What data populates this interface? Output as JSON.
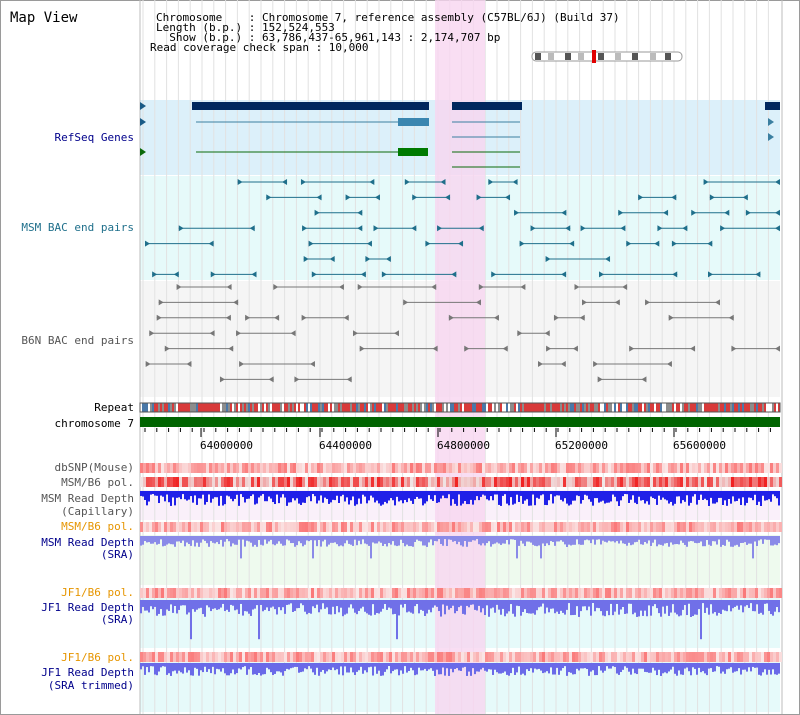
{
  "title": "Map View",
  "header": {
    "line1": "Chromosome    : Chromosome 7, reference assembly (C57BL/6J) (Build 37)",
    "line2": "Length (b.p.) : 152,524,553",
    "line3": "  Show (b.p.) : 63,786,437-65,961,143 : 2,174,707 bp",
    "line4": "Read coverage check span : 10,000"
  },
  "tracks": {
    "refseq": "RefSeq Genes",
    "msm_bac": "MSM BAC end pairs",
    "b6n_bac": "B6N BAC end pairs",
    "repeat": "Repeat",
    "chromosome": "chromosome 7",
    "dbsnp": "dbSNP(Mouse)",
    "msm_b6_pol": "MSM/B6 pol.",
    "msm_depth_cap_1": "MSM Read Depth",
    "msm_depth_cap_2": "(Capillary)",
    "msm_b6_pol_2": "MSM/B6 pol.",
    "msm_depth_sra_1": "MSM Read Depth",
    "msm_depth_sra_2": "(SRA)",
    "jf1_b6_pol": "JF1/B6 pol.",
    "jf1_depth_1": "JF1 Read Depth",
    "jf1_depth_2": "(SRA)",
    "jf1_b6_pol_2": "JF1/B6 pol.",
    "jf1_trim_1": "JF1 Read Depth",
    "jf1_trim_2": "(SRA trimmed)"
  },
  "axis": {
    "ticks": [
      "64000000",
      "64400000",
      "64800000",
      "65200000",
      "65600000"
    ]
  },
  "colors": {
    "refseq_label": "#00008b",
    "msm_label": "#1f6f8b",
    "b6n_label": "#555555",
    "orange_label": "#e69500",
    "blue_label": "#00008b",
    "highlight": "#f7d6f0",
    "chromosome_bar": "#006400"
  }
}
